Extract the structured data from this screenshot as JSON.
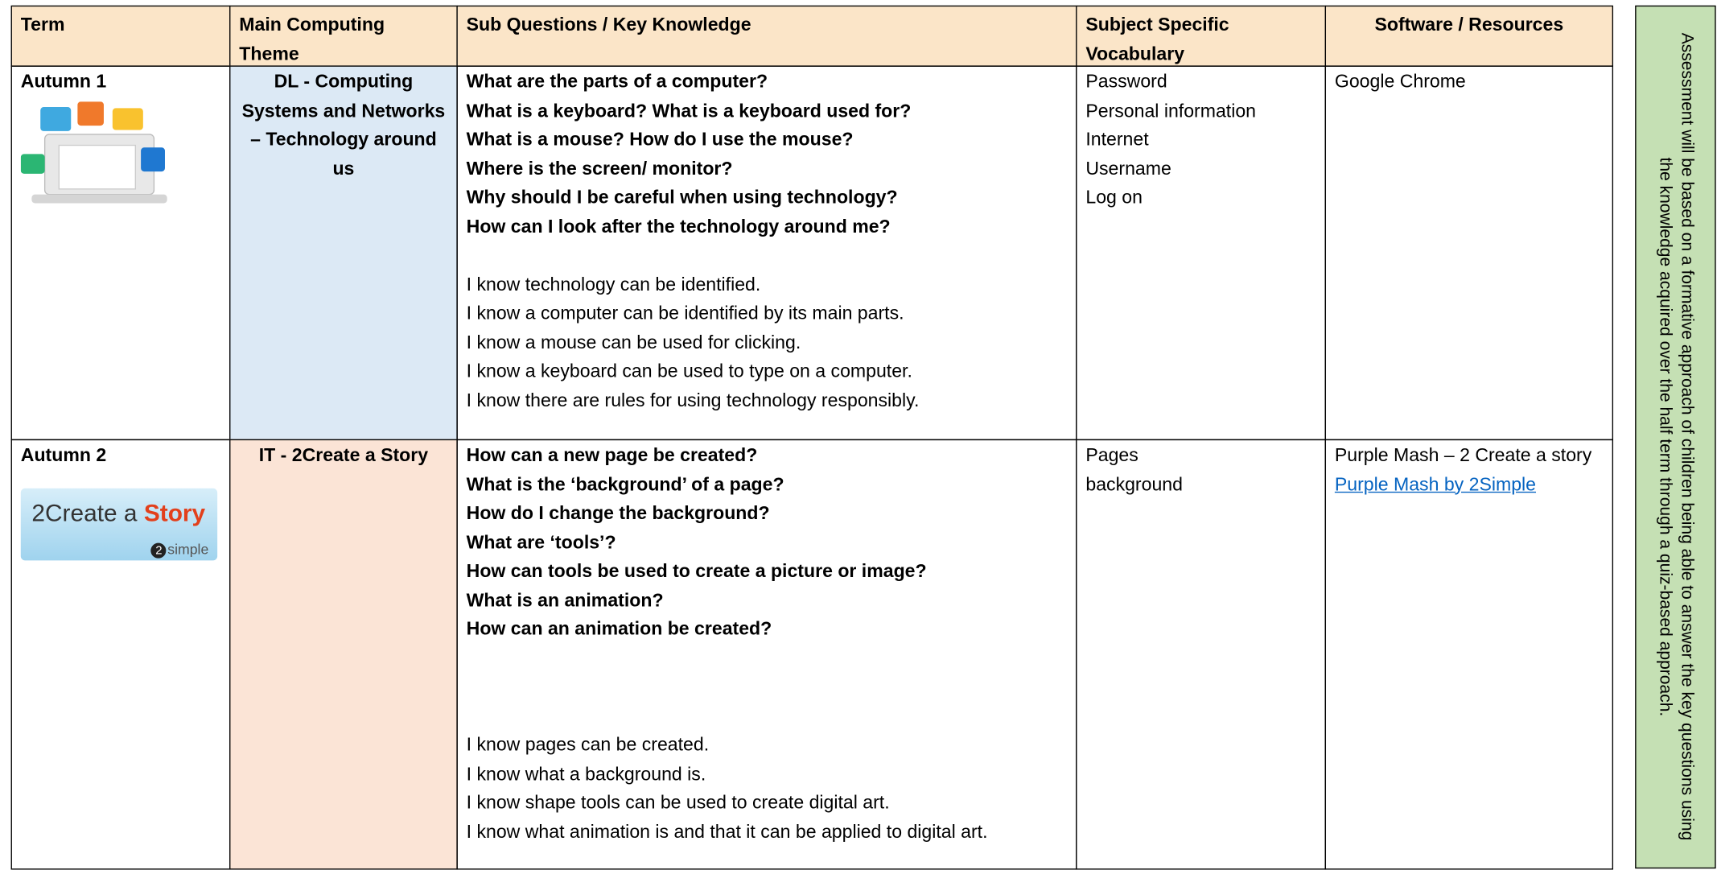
{
  "header": {
    "columns": [
      "Term",
      "Main Computing Theme",
      "Sub Questions / Key Knowledge",
      "Subject Specific Vocabulary",
      "Software / Resources"
    ]
  },
  "assessment": "Assessment will be based on a formative approach of children being able to answer the key questions using the knowledge acquired over the half term through a quiz-based approach.",
  "rows": [
    {
      "term": "Autumn 1",
      "theme": "DL - Computing Systems and Networks – Technology around us",
      "questions": [
        "What are the parts of a computer?",
        "What is a keyboard? What is a keyboard used for?",
        "What is a mouse? How do I use the mouse?",
        "Where is the screen/ monitor?",
        "Why should I be careful when using technology?",
        "How can I look after the technology around me?"
      ],
      "knowledge": [
        "I know technology can be identified.",
        "I know a computer can be identified by its main parts.",
        "I know a mouse can be used for clicking.",
        "I know a keyboard can be used to type on a computer.",
        "I know there are rules for using technology responsibly."
      ],
      "vocabulary": [
        "Password",
        "Personal information",
        "Internet",
        "Username",
        "Log on"
      ],
      "software": "Google Chrome"
    },
    {
      "term": "Autumn 2",
      "logo": {
        "text": "2Create a ",
        "highlight": "Story",
        "badge": "2",
        "brand": "simple"
      },
      "theme": "IT - 2Create a Story",
      "questions": [
        "How can a new page be created?",
        "What is the ‘background’ of a page?",
        "How do I change the background?",
        "What are ‘tools’?",
        "How can tools be used to create a picture or image?",
        "What is an animation?",
        "How can an animation be created?"
      ],
      "knowledge": [
        "I know pages can be created.",
        "I know what a background is.",
        "I know shape tools can be used to create digital art.",
        "I know what animation is and that it can be applied to digital art."
      ],
      "vocabulary": [
        "Pages",
        "background"
      ],
      "software": "Purple Mash – 2 Create a story",
      "link": "Purple Mash by 2Simple"
    }
  ]
}
